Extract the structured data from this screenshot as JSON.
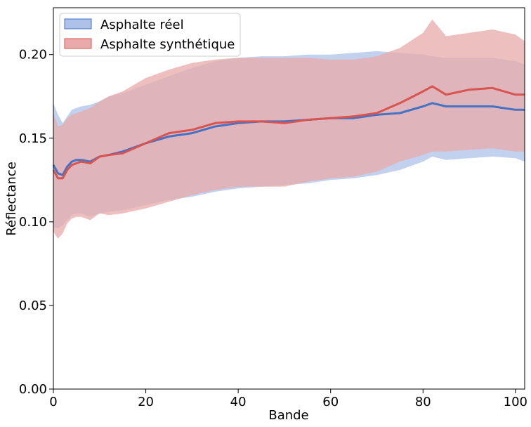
{
  "chart_data": {
    "type": "line",
    "xlabel": "Bande",
    "ylabel": "Réflectance",
    "xlim": [
      0,
      102
    ],
    "ylim": [
      0.0,
      0.228
    ],
    "xticks": [
      0,
      20,
      40,
      60,
      80,
      100
    ],
    "yticks": [
      0.0,
      0.05,
      0.1,
      0.15,
      0.2
    ],
    "xtick_labels": [
      "0",
      "20",
      "40",
      "60",
      "80",
      "100"
    ],
    "ytick_labels": [
      "0.00",
      "0.05",
      "0.10",
      "0.15",
      "0.20"
    ],
    "grid": false,
    "legend_position": "top-left",
    "x_points": [
      0,
      1,
      2,
      3,
      4,
      5,
      6,
      8,
      10,
      12,
      15,
      20,
      25,
      30,
      35,
      40,
      45,
      50,
      55,
      60,
      65,
      70,
      75,
      80,
      82,
      85,
      90,
      95,
      100,
      102
    ],
    "series": [
      {
        "name": "Asphalte réel",
        "line_color": "#4472c4",
        "fill_color": "#aec2e8",
        "mean": [
          0.134,
          0.129,
          0.128,
          0.133,
          0.136,
          0.137,
          0.137,
          0.136,
          0.139,
          0.14,
          0.142,
          0.147,
          0.151,
          0.153,
          0.157,
          0.159,
          0.16,
          0.16,
          0.161,
          0.162,
          0.162,
          0.164,
          0.165,
          0.169,
          0.171,
          0.169,
          0.169,
          0.169,
          0.167,
          0.167
        ],
        "upper": [
          0.171,
          0.164,
          0.159,
          0.163,
          0.167,
          0.168,
          0.169,
          0.17,
          0.172,
          0.175,
          0.177,
          0.182,
          0.187,
          0.192,
          0.196,
          0.198,
          0.199,
          0.199,
          0.2,
          0.2,
          0.201,
          0.202,
          0.201,
          0.2,
          0.199,
          0.198,
          0.198,
          0.198,
          0.196,
          0.194
        ],
        "lower": [
          0.097,
          0.096,
          0.098,
          0.101,
          0.104,
          0.105,
          0.105,
          0.103,
          0.105,
          0.106,
          0.107,
          0.11,
          0.113,
          0.115,
          0.118,
          0.12,
          0.121,
          0.122,
          0.123,
          0.125,
          0.126,
          0.128,
          0.131,
          0.136,
          0.139,
          0.137,
          0.138,
          0.139,
          0.138,
          0.136
        ]
      },
      {
        "name": "Asphalte synthétique",
        "line_color": "#d9534f",
        "fill_color": "#e8aaaa",
        "mean": [
          0.131,
          0.126,
          0.126,
          0.131,
          0.134,
          0.135,
          0.136,
          0.135,
          0.139,
          0.14,
          0.141,
          0.147,
          0.153,
          0.155,
          0.159,
          0.16,
          0.16,
          0.159,
          0.161,
          0.162,
          0.163,
          0.165,
          0.171,
          0.178,
          0.181,
          0.176,
          0.179,
          0.18,
          0.176,
          0.176
        ],
        "upper": [
          0.165,
          0.157,
          0.158,
          0.162,
          0.164,
          0.165,
          0.166,
          0.168,
          0.172,
          0.175,
          0.178,
          0.186,
          0.191,
          0.195,
          0.197,
          0.198,
          0.198,
          0.198,
          0.198,
          0.197,
          0.197,
          0.199,
          0.204,
          0.213,
          0.221,
          0.211,
          0.213,
          0.215,
          0.212,
          0.208
        ],
        "lower": [
          0.094,
          0.09,
          0.093,
          0.099,
          0.102,
          0.103,
          0.103,
          0.101,
          0.105,
          0.104,
          0.105,
          0.108,
          0.112,
          0.116,
          0.119,
          0.121,
          0.121,
          0.121,
          0.124,
          0.126,
          0.127,
          0.13,
          0.136,
          0.14,
          0.142,
          0.142,
          0.143,
          0.144,
          0.142,
          0.142
        ]
      }
    ]
  }
}
